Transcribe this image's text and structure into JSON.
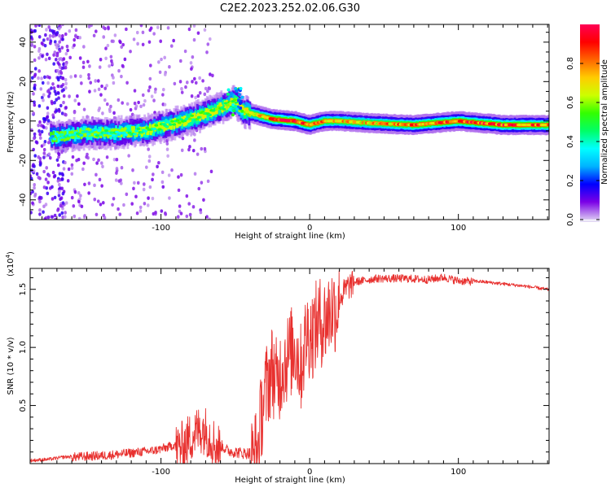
{
  "title": "C2E2.2023.252.02.06.G30",
  "chart_data": [
    {
      "type": "heatmap",
      "title": "C2E2.2023.252.02.06.G30",
      "xlabel": "Height of straight line (km)",
      "ylabel": "Frequency (Hz)",
      "xlim": [
        -188,
        161
      ],
      "ylim": [
        -50,
        49
      ],
      "xticks": [
        -100,
        0,
        100
      ],
      "yticks": [
        -40,
        -20,
        0,
        20,
        40
      ],
      "colorbar": {
        "label": "Normalized spectral amplitude",
        "range": [
          0,
          1
        ],
        "ticks": [
          "0.0",
          "0.2",
          "0.4",
          "0.6",
          "0.8"
        ],
        "tick_values": [
          0,
          0.2,
          0.4,
          0.6,
          0.8
        ],
        "colormap": [
          "#d9c6f2",
          "#7a00e6",
          "#0000ff",
          "#00b3ff",
          "#00ffff",
          "#00ff66",
          "#33ff00",
          "#ccff00",
          "#ffcc00",
          "#ff6600",
          "#ff0000",
          "#ff0055"
        ]
      },
      "ridge": [
        {
          "x": -185,
          "freq": -8,
          "amp": 0.15
        },
        {
          "x": -170,
          "freq": -8,
          "amp": 0.35
        },
        {
          "x": -150,
          "freq": -6,
          "amp": 0.4
        },
        {
          "x": -130,
          "freq": -6,
          "amp": 0.4
        },
        {
          "x": -110,
          "freq": -5,
          "amp": 0.45
        },
        {
          "x": -95,
          "freq": -2,
          "amp": 0.45
        },
        {
          "x": -80,
          "freq": 1,
          "amp": 0.5
        },
        {
          "x": -65,
          "freq": 5,
          "amp": 0.5
        },
        {
          "x": -50,
          "freq": 10,
          "amp": 0.55
        },
        {
          "x": -45,
          "freq": 5,
          "amp": 0.55
        },
        {
          "x": -35,
          "freq": 3,
          "amp": 0.65
        },
        {
          "x": -25,
          "freq": 1,
          "amp": 0.85
        },
        {
          "x": -10,
          "freq": 0,
          "amp": 0.9
        },
        {
          "x": 0,
          "freq": -2,
          "amp": 0.8
        },
        {
          "x": 10,
          "freq": 0,
          "amp": 0.75
        },
        {
          "x": 20,
          "freq": 0,
          "amp": 0.7
        },
        {
          "x": 40,
          "freq": -1,
          "amp": 0.7
        },
        {
          "x": 70,
          "freq": -2,
          "amp": 0.8
        },
        {
          "x": 100,
          "freq": 0,
          "amp": 0.85
        },
        {
          "x": 130,
          "freq": -2,
          "amp": 0.85
        },
        {
          "x": 161,
          "freq": -2,
          "amp": 0.8
        }
      ]
    },
    {
      "type": "line",
      "xlabel": "Height of straight line (km)",
      "ylabel": "SNR (10 * v/v)",
      "y_multiplier_label": "(x10",
      "y_multiplier_exp": "4",
      "y_multiplier_close": ")",
      "xlim": [
        -188,
        161
      ],
      "ylim": [
        0,
        1.68
      ],
      "xticks": [
        -100,
        0,
        100
      ],
      "yticks": [
        0.5,
        1.0,
        1.5
      ],
      "ytick_labels": [
        "0.5",
        "1.0",
        "1.5"
      ],
      "color": "#e8312f",
      "series": [
        {
          "name": "SNR",
          "x": [
            -188,
            -175,
            -165,
            -150,
            -135,
            -120,
            -105,
            -95,
            -85,
            -78,
            -72,
            -68,
            -63,
            -55,
            -45,
            -40,
            -35,
            -32,
            -28,
            -25,
            -22,
            -18,
            -14,
            -10,
            -6,
            -2,
            2,
            6,
            10,
            14,
            18,
            22,
            26,
            30,
            35,
            45,
            55,
            65,
            80,
            90,
            100,
            115,
            130,
            145,
            161
          ],
          "y": [
            0.03,
            0.04,
            0.06,
            0.07,
            0.08,
            0.1,
            0.12,
            0.15,
            0.2,
            0.3,
            0.35,
            0.3,
            0.2,
            0.12,
            0.1,
            0.1,
            0.18,
            0.55,
            0.8,
            0.9,
            0.75,
            0.95,
            1.0,
            1.1,
            0.9,
            1.2,
            1.2,
            1.3,
            1.3,
            1.4,
            1.42,
            1.48,
            1.55,
            1.57,
            1.58,
            1.6,
            1.6,
            1.6,
            1.59,
            1.61,
            1.58,
            1.57,
            1.55,
            1.53,
            1.5
          ]
        }
      ]
    }
  ]
}
